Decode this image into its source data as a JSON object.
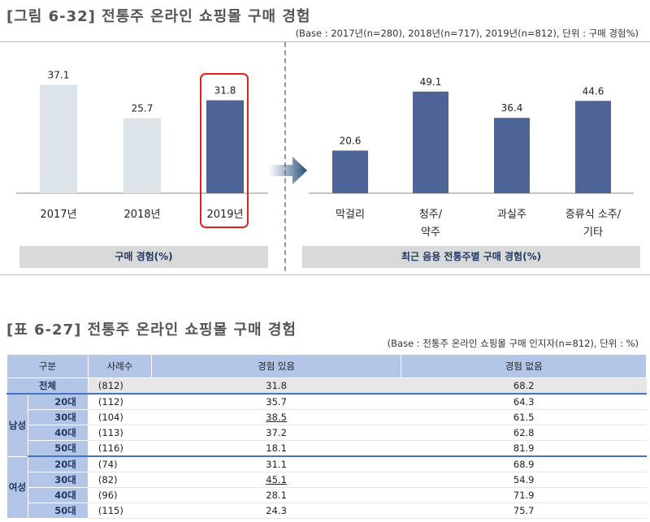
{
  "figure": {
    "title": "[그림 6-32] 전통주 온라인 쇼핑몰 구매 경험",
    "base": "(Base : 2017년(n=280), 2018년(n=717), 2019년(n=812), 단위 : 구매 경험%)",
    "left_caption": "구매 경험(%)",
    "right_caption": "최근 음용 전통주별 구매 경험(%)"
  },
  "chart_data": [
    {
      "type": "bar",
      "categories": [
        "2017년",
        "2018년",
        "2019년"
      ],
      "values": [
        37.1,
        25.7,
        31.8
      ],
      "colors": [
        "#dce3e9",
        "#dce3e9",
        "#4e6496"
      ],
      "highlight": "2019년"
    },
    {
      "type": "bar",
      "categories": [
        [
          "막걸리"
        ],
        [
          "청주/",
          "약주"
        ],
        [
          "과실주"
        ],
        [
          "증류식 소주/",
          "기타"
        ]
      ],
      "values": [
        20.6,
        49.1,
        36.4,
        44.6
      ],
      "colors": [
        "#4e6496",
        "#4e6496",
        "#4e6496",
        "#4e6496"
      ]
    }
  ],
  "table": {
    "title": "[표 6-27] 전통주 온라인 쇼핑몰 구매 경험",
    "base": "(Base : 전통주 온라인 쇼핑몰 구매 인지자(n=812), 단위 : %)",
    "headers": [
      "구분",
      "사례수",
      "경험 있음",
      "경험 없음"
    ],
    "total": {
      "label": "전체",
      "n": "(812)",
      "yes": "31.8",
      "no": "68.2"
    },
    "male": {
      "label": "남성",
      "rows": [
        {
          "age": "20대",
          "n": "(112)",
          "yes": "35.7",
          "no": "64.3"
        },
        {
          "age": "30대",
          "n": "(104)",
          "yes": "38.5",
          "no": "61.5"
        },
        {
          "age": "40대",
          "n": "(113)",
          "yes": "37.2",
          "no": "62.8"
        },
        {
          "age": "50대",
          "n": "(116)",
          "yes": "18.1",
          "no": "81.9"
        }
      ]
    },
    "female": {
      "label": "여성",
      "rows": [
        {
          "age": "20대",
          "n": "(74)",
          "yes": "31.1",
          "no": "68.9"
        },
        {
          "age": "30대",
          "n": "(82)",
          "yes": "45.1",
          "no": "54.9"
        },
        {
          "age": "40대",
          "n": "(96)",
          "yes": "28.1",
          "no": "71.9"
        },
        {
          "age": "50대",
          "n": "(115)",
          "yes": "24.3",
          "no": "75.7"
        }
      ]
    }
  }
}
